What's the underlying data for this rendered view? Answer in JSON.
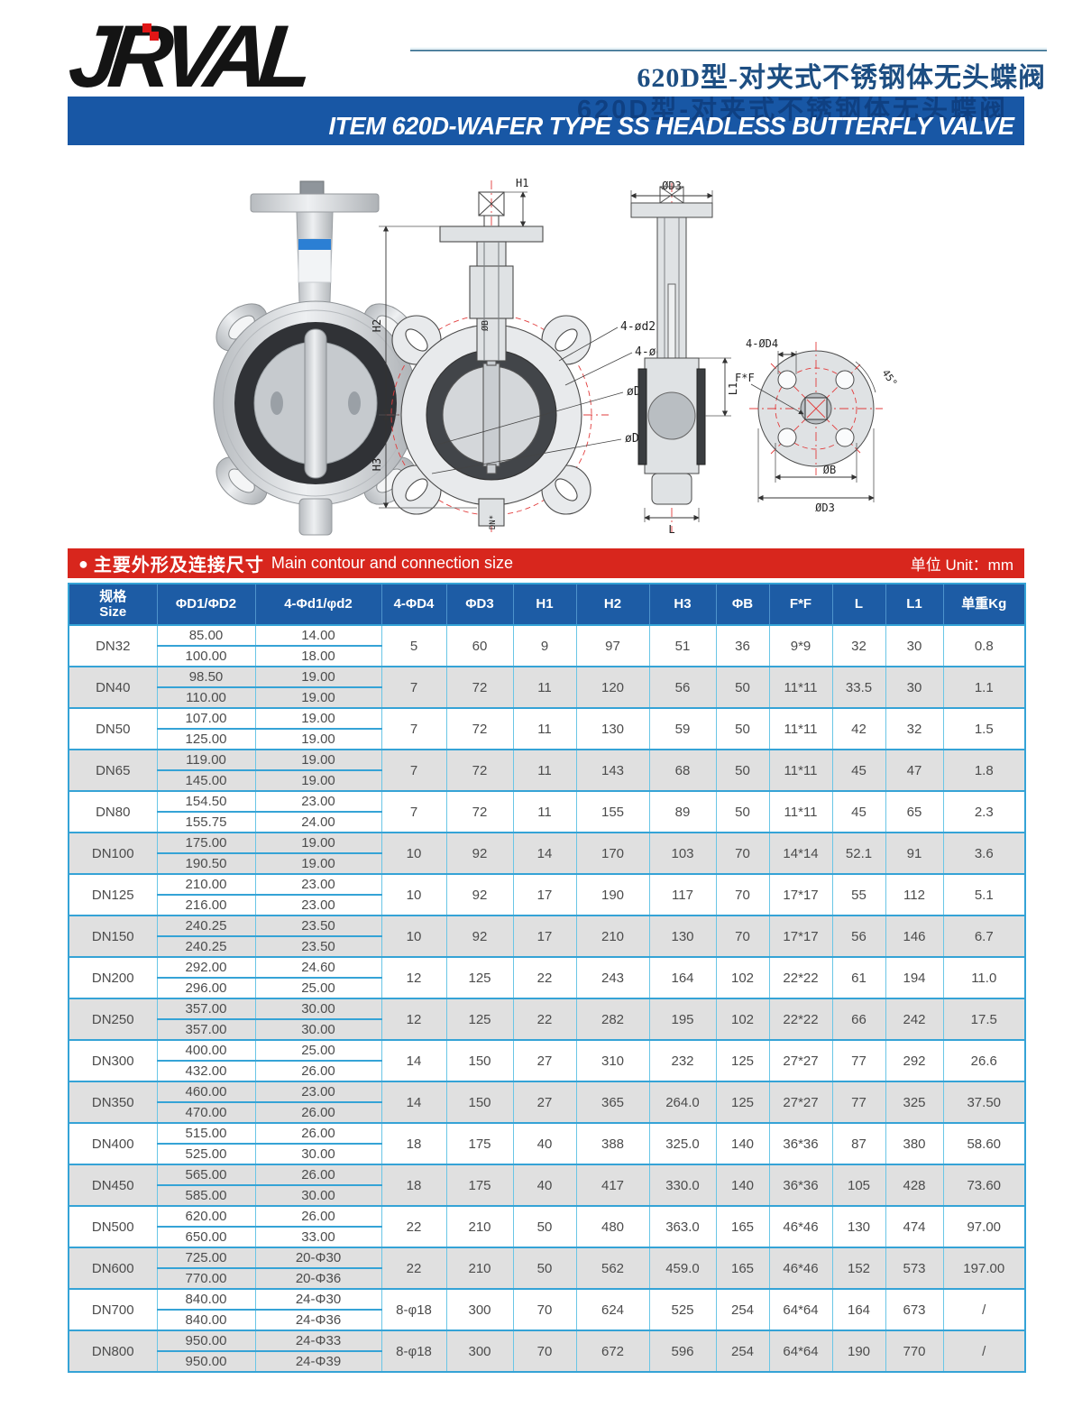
{
  "header": {
    "logo_text": "JRVAL",
    "cn_title": "620D型-对夹式不锈钢体无头蝶阀",
    "banner_ghost": "620D型-对夹式不锈钢体无头蝶阀",
    "banner_title": "ITEM 620D-WAFER TYPE SS HEADLESS BUTTERFLY VALVE"
  },
  "section_bar": {
    "bullet": "●",
    "title_cn": "主要外形及连接尺寸",
    "title_en": "Main contour and connection size",
    "unit_label": "单位 Unit：mm"
  },
  "drawing_labels": {
    "h1": "H1",
    "h2": "H2",
    "h3": "H3",
    "holes_d2": "4-ød2",
    "holes_d1": "4-ød1",
    "dia_d2": "øD2",
    "dia_d1": "øD1",
    "stem_dia": "ØB",
    "dn_mark": "DN*",
    "dia_d3_top": "ØD3",
    "l": "L",
    "l1": "L1",
    "holes_d4": "4-ØD4",
    "ff": "F*F",
    "angle": "45°",
    "dia_b": "ØB",
    "dia_d3_bottom": "ØD3"
  },
  "table": {
    "headers": [
      "规格\nSize",
      "ΦD1/ΦD2",
      "4-Φd1/φd2",
      "4-ΦD4",
      "ΦD3",
      "H1",
      "H2",
      "H3",
      "ΦB",
      "F*F",
      "L",
      "L1",
      "单重Kg"
    ],
    "rows": [
      {
        "size": "DN32",
        "d1": "85.00",
        "d2": "100.00",
        "hole1": "14.00",
        "hole2": "18.00",
        "d4": "5",
        "d3": "60",
        "h1": "9",
        "h2": "97",
        "h3": "51",
        "b": "36",
        "ff": "9*9",
        "l": "32",
        "l1": "30",
        "kg": "0.8"
      },
      {
        "size": "DN40",
        "d1": "98.50",
        "d2": "110.00",
        "hole1": "19.00",
        "hole2": "19.00",
        "d4": "7",
        "d3": "72",
        "h1": "11",
        "h2": "120",
        "h3": "56",
        "b": "50",
        "ff": "11*11",
        "l": "33.5",
        "l1": "30",
        "kg": "1.1"
      },
      {
        "size": "DN50",
        "d1": "107.00",
        "d2": "125.00",
        "hole1": "19.00",
        "hole2": "19.00",
        "d4": "7",
        "d3": "72",
        "h1": "11",
        "h2": "130",
        "h3": "59",
        "b": "50",
        "ff": "11*11",
        "l": "42",
        "l1": "32",
        "kg": "1.5"
      },
      {
        "size": "DN65",
        "d1": "119.00",
        "d2": "145.00",
        "hole1": "19.00",
        "hole2": "19.00",
        "d4": "7",
        "d3": "72",
        "h1": "11",
        "h2": "143",
        "h3": "68",
        "b": "50",
        "ff": "11*11",
        "l": "45",
        "l1": "47",
        "kg": "1.8"
      },
      {
        "size": "DN80",
        "d1": "154.50",
        "d2": "155.75",
        "hole1": "23.00",
        "hole2": "24.00",
        "d4": "7",
        "d3": "72",
        "h1": "11",
        "h2": "155",
        "h3": "89",
        "b": "50",
        "ff": "11*11",
        "l": "45",
        "l1": "65",
        "kg": "2.3"
      },
      {
        "size": "DN100",
        "d1": "175.00",
        "d2": "190.50",
        "hole1": "19.00",
        "hole2": "19.00",
        "d4": "10",
        "d3": "92",
        "h1": "14",
        "h2": "170",
        "h3": "103",
        "b": "70",
        "ff": "14*14",
        "l": "52.1",
        "l1": "91",
        "kg": "3.6"
      },
      {
        "size": "DN125",
        "d1": "210.00",
        "d2": "216.00",
        "hole1": "23.00",
        "hole2": "23.00",
        "d4": "10",
        "d3": "92",
        "h1": "17",
        "h2": "190",
        "h3": "117",
        "b": "70",
        "ff": "17*17",
        "l": "55",
        "l1": "112",
        "kg": "5.1"
      },
      {
        "size": "DN150",
        "d1": "240.25",
        "d2": "240.25",
        "hole1": "23.50",
        "hole2": "23.50",
        "d4": "10",
        "d3": "92",
        "h1": "17",
        "h2": "210",
        "h3": "130",
        "b": "70",
        "ff": "17*17",
        "l": "56",
        "l1": "146",
        "kg": "6.7"
      },
      {
        "size": "DN200",
        "d1": "292.00",
        "d2": "296.00",
        "hole1": "24.60",
        "hole2": "25.00",
        "d4": "12",
        "d3": "125",
        "h1": "22",
        "h2": "243",
        "h3": "164",
        "b": "102",
        "ff": "22*22",
        "l": "61",
        "l1": "194",
        "kg": "11.0"
      },
      {
        "size": "DN250",
        "d1": "357.00",
        "d2": "357.00",
        "hole1": "30.00",
        "hole2": "30.00",
        "d4": "12",
        "d3": "125",
        "h1": "22",
        "h2": "282",
        "h3": "195",
        "b": "102",
        "ff": "22*22",
        "l": "66",
        "l1": "242",
        "kg": "17.5"
      },
      {
        "size": "DN300",
        "d1": "400.00",
        "d2": "432.00",
        "hole1": "25.00",
        "hole2": "26.00",
        "d4": "14",
        "d3": "150",
        "h1": "27",
        "h2": "310",
        "h3": "232",
        "b": "125",
        "ff": "27*27",
        "l": "77",
        "l1": "292",
        "kg": "26.6"
      },
      {
        "size": "DN350",
        "d1": "460.00",
        "d2": "470.00",
        "hole1": "23.00",
        "hole2": "26.00",
        "d4": "14",
        "d3": "150",
        "h1": "27",
        "h2": "365",
        "h3": "264.0",
        "b": "125",
        "ff": "27*27",
        "l": "77",
        "l1": "325",
        "kg": "37.50"
      },
      {
        "size": "DN400",
        "d1": "515.00",
        "d2": "525.00",
        "hole1": "26.00",
        "hole2": "30.00",
        "d4": "18",
        "d3": "175",
        "h1": "40",
        "h2": "388",
        "h3": "325.0",
        "b": "140",
        "ff": "36*36",
        "l": "87",
        "l1": "380",
        "kg": "58.60"
      },
      {
        "size": "DN450",
        "d1": "565.00",
        "d2": "585.00",
        "hole1": "26.00",
        "hole2": "30.00",
        "d4": "18",
        "d3": "175",
        "h1": "40",
        "h2": "417",
        "h3": "330.0",
        "b": "140",
        "ff": "36*36",
        "l": "105",
        "l1": "428",
        "kg": "73.60"
      },
      {
        "size": "DN500",
        "d1": "620.00",
        "d2": "650.00",
        "hole1": "26.00",
        "hole2": "33.00",
        "d4": "22",
        "d3": "210",
        "h1": "50",
        "h2": "480",
        "h3": "363.0",
        "b": "165",
        "ff": "46*46",
        "l": "130",
        "l1": "474",
        "kg": "97.00"
      },
      {
        "size": "DN600",
        "d1": "725.00",
        "d2": "770.00",
        "hole1": "20-Φ30",
        "hole2": "20-Φ36",
        "d4": "22",
        "d3": "210",
        "h1": "50",
        "h2": "562",
        "h3": "459.0",
        "b": "165",
        "ff": "46*46",
        "l": "152",
        "l1": "573",
        "kg": "197.00"
      },
      {
        "size": "DN700",
        "d1": "840.00",
        "d2": "840.00",
        "hole1": "24-Φ30",
        "hole2": "24-Φ36",
        "d4": "8-φ18",
        "d3": "300",
        "h1": "70",
        "h2": "624",
        "h3": "525",
        "b": "254",
        "ff": "64*64",
        "l": "164",
        "l1": "673",
        "kg": "/"
      },
      {
        "size": "DN800",
        "d1": "950.00",
        "d2": "950.00",
        "hole1": "24-Φ33",
        "hole2": "24-Φ39",
        "d4": "8-φ18",
        "d3": "300",
        "h1": "70",
        "h2": "672",
        "h3": "596",
        "b": "254",
        "ff": "64*64",
        "l": "190",
        "l1": "770",
        "kg": "/"
      }
    ]
  },
  "colors": {
    "banner_blue": "#1857a5",
    "table_header_blue": "#1d5ca5",
    "bar_red": "#d8261d",
    "grid_cyan": "#6ac6e6",
    "group_line": "#35a3d6",
    "stripe_gray": "#e0e0e0",
    "title_navy": "#1d4e82",
    "logo_black": "#141414",
    "logo_accent_red": "#e01616"
  }
}
